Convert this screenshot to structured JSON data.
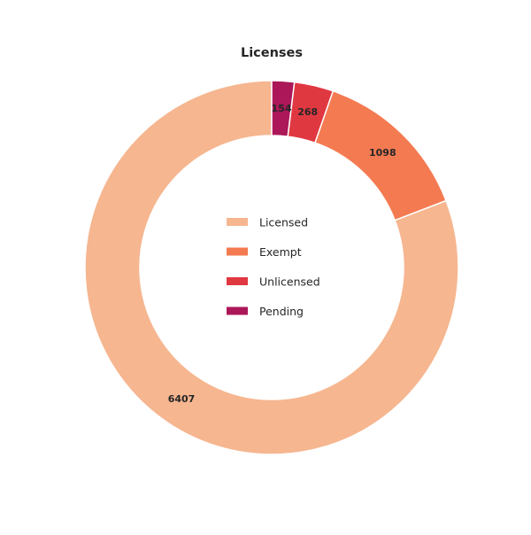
{
  "chart_data": {
    "type": "pie",
    "title": "Licenses",
    "categories": [
      "Licensed",
      "Exempt",
      "Unlicensed",
      "Pending"
    ],
    "values": [
      6407,
      1098,
      268,
      154
    ],
    "colors": [
      "#f6b690",
      "#f47a51",
      "#e03841",
      "#ac1759"
    ],
    "legend": "center",
    "donut": true
  }
}
